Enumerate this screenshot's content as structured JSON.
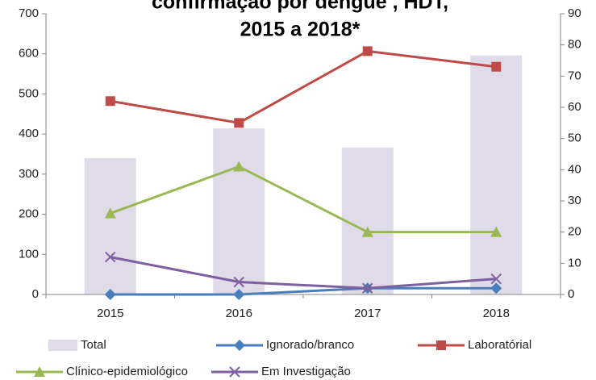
{
  "chart_data": {
    "type": "bar-line",
    "title": [
      "confirmação por dengue , HDT,",
      "2015 a 2018*"
    ],
    "categories": [
      "2015",
      "2016",
      "2017",
      "2018"
    ],
    "series": [
      {
        "name": "Total",
        "type": "bar",
        "color": "#e0dbe9",
        "values": [
          340,
          414,
          366,
          596
        ]
      },
      {
        "name": "Ignorado/branco",
        "type": "line",
        "marker": "diamond",
        "axis": "y2",
        "color": "#4a7ebb",
        "values": [
          0,
          0,
          2,
          2
        ]
      },
      {
        "name": "Laboratórial",
        "type": "line",
        "marker": "square",
        "axis": "y2",
        "color": "#be4b48",
        "values": [
          62,
          55,
          78,
          73
        ]
      },
      {
        "name": "Clínico-epidemiológico",
        "type": "line",
        "marker": "triangle",
        "axis": "y2",
        "color": "#98b954",
        "values": [
          26,
          41,
          20,
          20
        ]
      },
      {
        "name": "Em Investigação",
        "type": "line",
        "marker": "x",
        "axis": "y2",
        "color": "#7d60a0",
        "values": [
          12,
          4,
          2,
          5
        ]
      }
    ],
    "ylim": [
      0,
      700
    ],
    "yticks": [
      0,
      100,
      200,
      300,
      400,
      500,
      600,
      700
    ],
    "y2lim": [
      0,
      90
    ],
    "y2ticks": [
      0,
      10,
      20,
      30,
      40,
      50,
      60,
      70,
      80,
      90
    ]
  }
}
